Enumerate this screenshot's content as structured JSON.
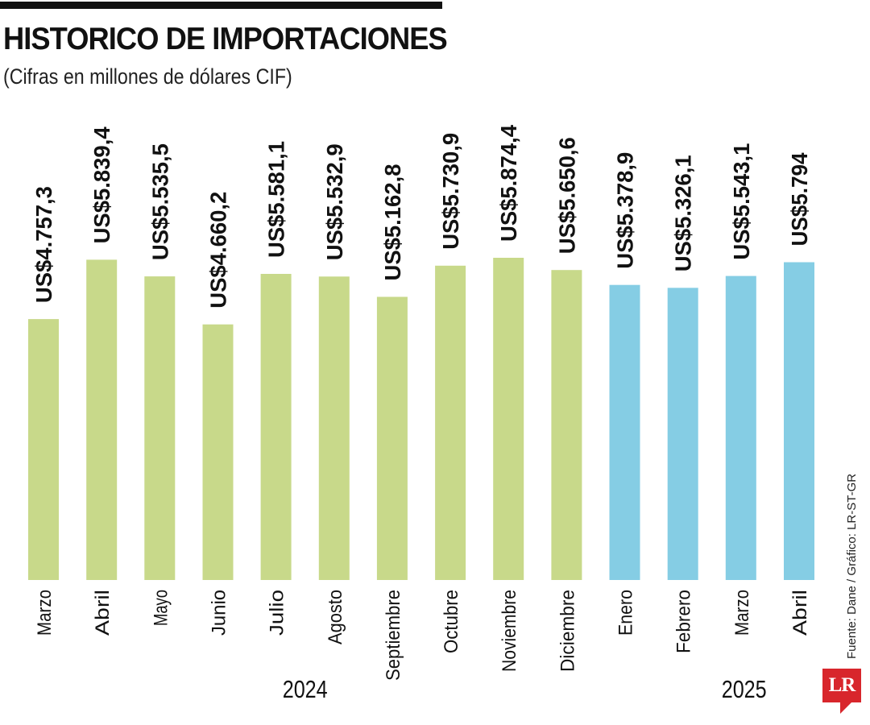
{
  "title": "HISTORICO DE IMPORTACIONES",
  "subtitle": "(Cifras en millones de dólares CIF)",
  "source": "Fuente: Dane / Gráfico: LR-ST-GR",
  "logo": "LR",
  "colors": {
    "bar_2024": "#c8d98a",
    "bar_2025": "#85cde4",
    "text": "#111111",
    "logo": "#d8262c",
    "rule": "#111111"
  },
  "chart_data": {
    "type": "bar",
    "title": "HISTORICO DE IMPORTACIONES",
    "subtitle": "(Cifras en millones de dólares CIF)",
    "xlabel": "",
    "ylabel": "",
    "ylim": [
      0,
      5874.4
    ],
    "grid": false,
    "legend": "none",
    "categories": [
      "Marzo",
      "Abril",
      "Mayo",
      "Junio",
      "Julio",
      "Agosto",
      "Septiembre",
      "Octubre",
      "Noviembre",
      "Diciembre",
      "Enero",
      "Febrero",
      "Marzo",
      "Abril"
    ],
    "years": [
      "2024",
      "2024",
      "2024",
      "2024",
      "2024",
      "2024",
      "2024",
      "2024",
      "2024",
      "2024",
      "2025",
      "2025",
      "2025",
      "2025"
    ],
    "year_labels": [
      "2024",
      "2025"
    ],
    "values": [
      4757.3,
      5839.4,
      5535.5,
      4660.2,
      5581.1,
      5532.9,
      5162.8,
      5730.9,
      5874.4,
      5650.6,
      5378.9,
      5326.1,
      5543.1,
      5794
    ],
    "labels": [
      "US$4.757,3",
      "US$5.839,4",
      "US$5.535,5",
      "US$4.660,2",
      "US$5.581,1",
      "US$5.532,9",
      "US$5.162,8",
      "US$5.730,9",
      "US$5.874,4",
      "US$5.650,6",
      "US$5.378,9",
      "US$5.326,1",
      "US$5.543,1",
      "US$5.794"
    ]
  }
}
